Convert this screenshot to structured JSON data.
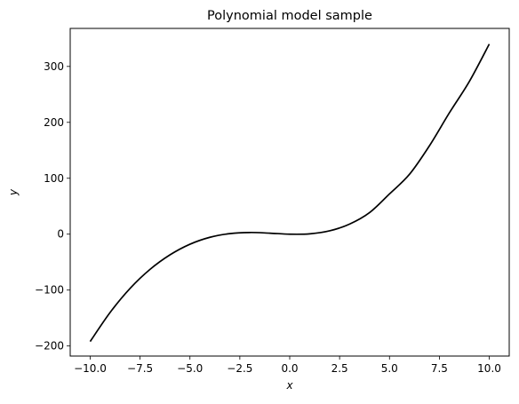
{
  "chart_data": {
    "type": "line",
    "title": "Polynomial model sample",
    "xlabel": "x",
    "ylabel": "y",
    "xlim": [
      -11,
      11
    ],
    "ylim": [
      -218,
      368
    ],
    "grid": false,
    "x_ticks": [
      -10.0,
      -7.5,
      -5.0,
      -2.5,
      0.0,
      2.5,
      5.0,
      7.5,
      10.0
    ],
    "x_tick_labels": [
      "−10.0",
      "−7.5",
      "−5.0",
      "−2.5",
      "0.0",
      "2.5",
      "5.0",
      "7.5",
      "10.0"
    ],
    "y_ticks": [
      -200,
      -100,
      0,
      100,
      200,
      300
    ],
    "y_tick_labels": [
      "−200",
      "−100",
      "0",
      "100",
      "200",
      "300"
    ],
    "series": [
      {
        "color": "#000000",
        "x": [
          -10,
          -9,
          -8,
          -7,
          -6,
          -5,
          -4,
          -3,
          -2,
          -1,
          0,
          1,
          2,
          3,
          4,
          5,
          6,
          7,
          8,
          9,
          10
        ],
        "y": [
          -192,
          -140,
          -97,
          -63,
          -37,
          -18,
          -5.6,
          1,
          3,
          1.8,
          0,
          0.6,
          6,
          18,
          38.5,
          72,
          107,
          158,
          217,
          273,
          340
        ]
      }
    ]
  }
}
